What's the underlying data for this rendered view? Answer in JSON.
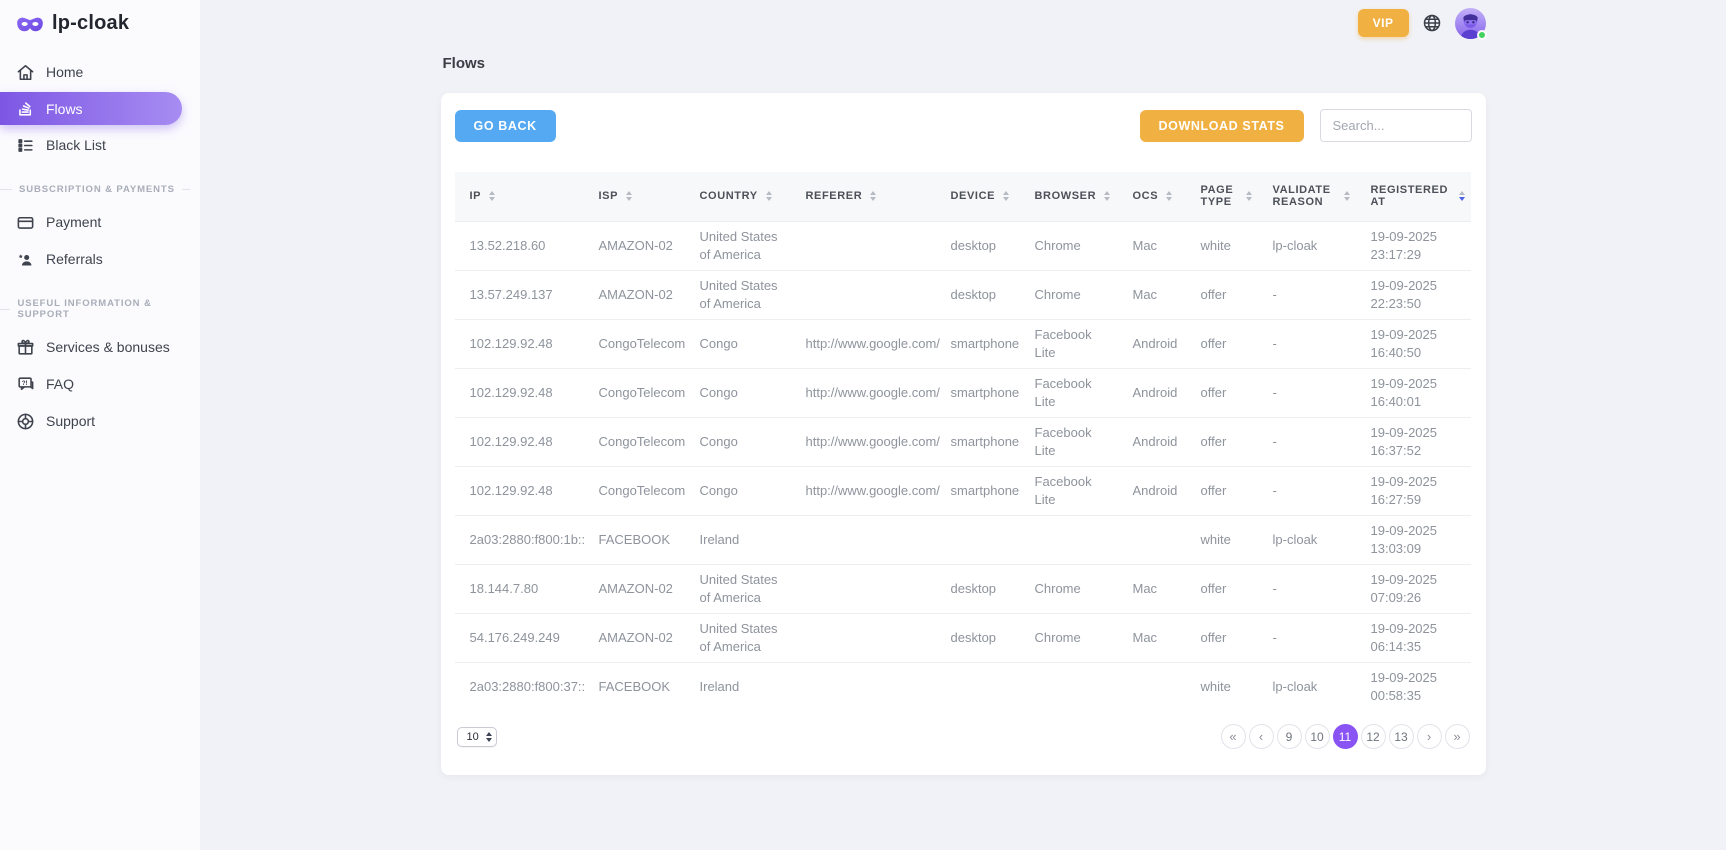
{
  "brand": {
    "name": "lp-cloak",
    "logo_icon": "mask-icon"
  },
  "topbar": {
    "vip_label": "VIP",
    "icons": [
      "globe-icon",
      "avatar"
    ]
  },
  "sidebar": {
    "main_items": [
      {
        "label": "Home",
        "icon": "home-icon",
        "active": false
      },
      {
        "label": "Flows",
        "icon": "flows-stack-icon",
        "active": true
      },
      {
        "label": "Black List",
        "icon": "black-list-icon",
        "active": false
      }
    ],
    "sections": [
      {
        "label": "SUBSCRIPTION & PAYMENTS",
        "items": [
          {
            "label": "Payment",
            "icon": "credit-card-icon"
          },
          {
            "label": "Referrals",
            "icon": "referral-user-icon"
          }
        ]
      },
      {
        "label": "USEFUL INFORMATION & SUPPORT",
        "items": [
          {
            "label": "Services & bonuses",
            "icon": "gift-icon"
          },
          {
            "label": "FAQ",
            "icon": "faq-chat-icon"
          },
          {
            "label": "Support",
            "icon": "support-globe-icon"
          }
        ]
      }
    ]
  },
  "page": {
    "title": "Flows"
  },
  "toolbar": {
    "go_back_label": "GO BACK",
    "download_stats_label": "DOWNLOAD STATS",
    "search_placeholder": "Search..."
  },
  "table": {
    "columns": [
      {
        "label": "IP",
        "sort": "none"
      },
      {
        "label": "ISP",
        "sort": "none"
      },
      {
        "label": "COUNTRY",
        "sort": "none"
      },
      {
        "label": "REFERER",
        "sort": "none"
      },
      {
        "label": "DEVICE",
        "sort": "none"
      },
      {
        "label": "BROWSER",
        "sort": "none"
      },
      {
        "label": "OCS",
        "sort": "none"
      },
      {
        "label": "PAGE TYPE",
        "sort": "none"
      },
      {
        "label": "VALIDATE REASON",
        "sort": "none"
      },
      {
        "label": "REGISTERED AT",
        "sort": "desc"
      }
    ],
    "rows": [
      {
        "ip": "13.52.218.60",
        "isp": "AMAZON-02",
        "country": "United States of America",
        "referer": "",
        "device": "desktop",
        "browser": "Chrome",
        "ocs": "Mac",
        "page_type": "white",
        "validate_reason": "lp-cloak",
        "registered_date": "19-09-2025",
        "registered_time": "23:17:29"
      },
      {
        "ip": "13.57.249.137",
        "isp": "AMAZON-02",
        "country": "United States of America",
        "referer": "",
        "device": "desktop",
        "browser": "Chrome",
        "ocs": "Mac",
        "page_type": "offer",
        "validate_reason": "-",
        "registered_date": "19-09-2025",
        "registered_time": "22:23:50"
      },
      {
        "ip": "102.129.92.48",
        "isp": "CongoTelecom",
        "country": "Congo",
        "referer": "http://www.google.com/",
        "device": "smartphone",
        "browser": "Facebook Lite",
        "ocs": "Android",
        "page_type": "offer",
        "validate_reason": "-",
        "registered_date": "19-09-2025",
        "registered_time": "16:40:50"
      },
      {
        "ip": "102.129.92.48",
        "isp": "CongoTelecom",
        "country": "Congo",
        "referer": "http://www.google.com/",
        "device": "smartphone",
        "browser": "Facebook Lite",
        "ocs": "Android",
        "page_type": "offer",
        "validate_reason": "-",
        "registered_date": "19-09-2025",
        "registered_time": "16:40:01"
      },
      {
        "ip": "102.129.92.48",
        "isp": "CongoTelecom",
        "country": "Congo",
        "referer": "http://www.google.com/",
        "device": "smartphone",
        "browser": "Facebook Lite",
        "ocs": "Android",
        "page_type": "offer",
        "validate_reason": "-",
        "registered_date": "19-09-2025",
        "registered_time": "16:37:52"
      },
      {
        "ip": "102.129.92.48",
        "isp": "CongoTelecom",
        "country": "Congo",
        "referer": "http://www.google.com/",
        "device": "smartphone",
        "browser": "Facebook Lite",
        "ocs": "Android",
        "page_type": "offer",
        "validate_reason": "-",
        "registered_date": "19-09-2025",
        "registered_time": "16:27:59"
      },
      {
        "ip": "2a03:2880:f800:1b::",
        "isp": "FACEBOOK",
        "country": "Ireland",
        "referer": "",
        "device": "",
        "browser": "",
        "ocs": "",
        "page_type": "white",
        "validate_reason": "lp-cloak",
        "registered_date": "19-09-2025",
        "registered_time": "13:03:09"
      },
      {
        "ip": "18.144.7.80",
        "isp": "AMAZON-02",
        "country": "United States of America",
        "referer": "",
        "device": "desktop",
        "browser": "Chrome",
        "ocs": "Mac",
        "page_type": "offer",
        "validate_reason": "-",
        "registered_date": "19-09-2025",
        "registered_time": "07:09:26"
      },
      {
        "ip": "54.176.249.249",
        "isp": "AMAZON-02",
        "country": "United States of America",
        "referer": "",
        "device": "desktop",
        "browser": "Chrome",
        "ocs": "Mac",
        "page_type": "offer",
        "validate_reason": "-",
        "registered_date": "19-09-2025",
        "registered_time": "06:14:35"
      },
      {
        "ip": "2a03:2880:f800:37::",
        "isp": "FACEBOOK",
        "country": "Ireland",
        "referer": "",
        "device": "",
        "browser": "",
        "ocs": "",
        "page_type": "white",
        "validate_reason": "lp-cloak",
        "registered_date": "19-09-2025",
        "registered_time": "00:58:35"
      }
    ]
  },
  "pagination": {
    "page_size": "10",
    "first_label": "«",
    "prev_label": "‹",
    "next_label": "›",
    "last_label": "»",
    "pages": [
      "9",
      "10",
      "11",
      "12",
      "13"
    ],
    "active_page": "11"
  },
  "colors": {
    "accent_purple": "#7d57e4",
    "accent_orange": "#f0b042",
    "accent_blue": "#55a9f2",
    "active_page_purple": "#8a53f3",
    "background": "#f1f2f7",
    "sort_active_arrow": "#4a63e7",
    "online_dot_green": "#44d15e"
  }
}
